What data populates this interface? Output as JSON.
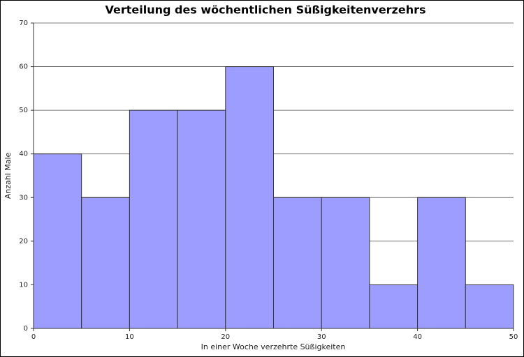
{
  "chart_data": {
    "type": "histogram",
    "title": "Verteilung des wöchentlichen Süßigkeitenverzehrs",
    "x_label": "In einer Woche verzehrte Süßigkeiten",
    "y_label": "Anzahl Male",
    "bins": [
      0,
      5,
      10,
      15,
      20,
      25,
      30,
      35,
      40,
      45,
      50
    ],
    "values": [
      40,
      30,
      50,
      50,
      60,
      30,
      30,
      10,
      30,
      10
    ],
    "color": "#9d9dff",
    "edge_color": "#333333",
    "xlim": [
      0,
      50
    ],
    "xticks": [
      0,
      10,
      20,
      30,
      40,
      50
    ],
    "ylim": [
      0,
      70
    ],
    "yticks": [
      0,
      10,
      20,
      30,
      40,
      50,
      60,
      70
    ],
    "grid": true
  }
}
